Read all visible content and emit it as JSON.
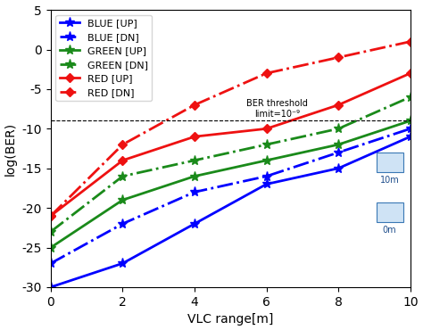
{
  "chart_data": {
    "type": "line",
    "x_label": "VLC range[m]",
    "y_label": "log(BER)",
    "x": [
      0,
      2,
      4,
      6,
      8,
      10
    ],
    "series": [
      {
        "name": "BLUE [UP]",
        "color": "#0000ff",
        "marker": "*",
        "line_style": "solid",
        "values": [
          -30,
          -27,
          -22,
          -17,
          -15,
          -11
        ]
      },
      {
        "name": "BLUE [DN]",
        "color": "#0000ff",
        "marker": "*",
        "line_style": "dashdot",
        "values": [
          -27,
          -22,
          -18,
          -16,
          -13,
          -10
        ]
      },
      {
        "name": "GREEN [UP]",
        "color": "#1a8a1a",
        "marker": "*",
        "line_style": "solid",
        "values": [
          -25,
          -19,
          -16,
          -14,
          -12,
          -9
        ]
      },
      {
        "name": "GREEN [DN]",
        "color": "#1a8a1a",
        "marker": "*",
        "line_style": "dashdot",
        "values": [
          -23,
          -16,
          -14,
          -12,
          -10,
          -6
        ]
      },
      {
        "name": "RED [UP]",
        "color": "#ee1111",
        "marker": "D",
        "line_style": "solid",
        "values": [
          -21,
          -14,
          -11,
          -10,
          -7,
          -3
        ]
      },
      {
        "name": "RED [DN]",
        "color": "#ee1111",
        "marker": "D",
        "line_style": "dashdot",
        "values": [
          -21,
          -12,
          -7,
          -3,
          -1,
          1
        ]
      }
    ],
    "threshold": {
      "value": -9,
      "label": "BER threshold\nlimit=10⁻⁹"
    },
    "annotations": [
      "10m",
      "0m"
    ],
    "xlim": [
      0,
      10
    ],
    "xticks": [
      0,
      2,
      4,
      6,
      8,
      10
    ],
    "ylim": [
      -30,
      5
    ],
    "yticks": [
      -30,
      -25,
      -20,
      -15,
      -10,
      -5,
      0,
      5
    ],
    "grid": false,
    "legend": "upper left"
  }
}
